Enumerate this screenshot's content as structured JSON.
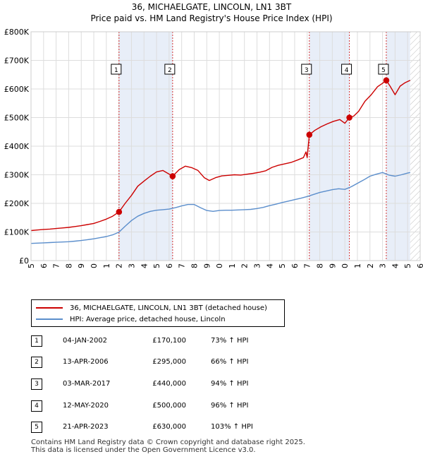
{
  "header": {
    "title": "36, MICHAELGATE, LINCOLN, LN1 3BT",
    "subtitle": "Price paid vs. HM Land Registry's House Price Index (HPI)"
  },
  "chart_data": {
    "type": "line",
    "title": "36, MICHAELGATE, LINCOLN, LN1 3BT",
    "subtitle": "Price paid vs. HM Land Registry's House Price Index (HPI)",
    "xlabel": "",
    "ylabel": "",
    "xlim": [
      1995,
      2026
    ],
    "ylim": [
      0,
      800000
    ],
    "x_ticks": [
      1995,
      1996,
      1997,
      1998,
      1999,
      2000,
      2001,
      2002,
      2003,
      2004,
      2005,
      2006,
      2007,
      2008,
      2009,
      2010,
      2011,
      2012,
      2013,
      2014,
      2015,
      2016,
      2017,
      2018,
      2019,
      2020,
      2021,
      2022,
      2023,
      2024,
      2025,
      2026
    ],
    "y_ticks": [
      {
        "value": 0,
        "label": "£0"
      },
      {
        "value": 100000,
        "label": "£100K"
      },
      {
        "value": 200000,
        "label": "£200K"
      },
      {
        "value": 300000,
        "label": "£300K"
      },
      {
        "value": 400000,
        "label": "£400K"
      },
      {
        "value": 500000,
        "label": "£500K"
      },
      {
        "value": 600000,
        "label": "£600K"
      },
      {
        "value": 700000,
        "label": "£700K"
      },
      {
        "value": 800000,
        "label": "£800K"
      }
    ],
    "grid": true,
    "shaded_periods": [
      [
        2002.01,
        2006.28
      ],
      [
        2017.17,
        2020.36
      ],
      [
        2023.3,
        2025.2
      ]
    ],
    "future_hatch_from": 2025.2,
    "series": [
      {
        "name": "36, MICHAELGATE, LINCOLN, LN1 3BT (detached house)",
        "color": "#cc0000",
        "x": [
          1995,
          1995.5,
          1996,
          1996.5,
          1997,
          1997.5,
          1998,
          1998.5,
          1999,
          1999.5,
          2000,
          2000.5,
          2001,
          2001.5,
          2002.01,
          2002.5,
          2003,
          2003.5,
          2004,
          2004.5,
          2005,
          2005.5,
          2006.28,
          2006.8,
          2007.3,
          2007.8,
          2008.3,
          2008.8,
          2009.2,
          2009.7,
          2010.2,
          2010.7,
          2011.2,
          2011.7,
          2012.2,
          2012.7,
          2013.2,
          2013.7,
          2014.2,
          2014.7,
          2015.2,
          2015.7,
          2016.2,
          2016.7,
          2016.9,
          2017.0,
          2017.17,
          2017.6,
          2018.1,
          2018.6,
          2019.1,
          2019.6,
          2020.0,
          2020.36,
          2020.7,
          2021.1,
          2021.6,
          2022.1,
          2022.6,
          2023.0,
          2023.3,
          2023.6,
          2024.0,
          2024.4,
          2024.8,
          2025.2
        ],
        "y": [
          105000,
          107000,
          109000,
          110000,
          112000,
          114000,
          116000,
          119000,
          122000,
          126000,
          130000,
          137000,
          145000,
          155000,
          170100,
          200000,
          228000,
          260000,
          278000,
          295000,
          310000,
          315000,
          295000,
          318000,
          330000,
          325000,
          315000,
          290000,
          280000,
          290000,
          296000,
          298000,
          300000,
          299000,
          302000,
          305000,
          309000,
          314000,
          326000,
          333000,
          338000,
          343000,
          351000,
          360000,
          380000,
          360000,
          440000,
          455000,
          468000,
          478000,
          487000,
          493000,
          480000,
          500000,
          505000,
          522000,
          557000,
          580000,
          608000,
          620000,
          630000,
          610000,
          580000,
          610000,
          622000,
          630000
        ]
      },
      {
        "name": "HPI: Average price, detached house, Lincoln",
        "color": "#5b8ecc",
        "x": [
          1995,
          1995.5,
          1996,
          1996.5,
          1997,
          1997.5,
          1998,
          1998.5,
          1999,
          1999.5,
          2000,
          2000.5,
          2001,
          2001.5,
          2002.0,
          2002.5,
          2003,
          2003.5,
          2004,
          2004.5,
          2005,
          2005.5,
          2006.0,
          2006.5,
          2007.0,
          2007.5,
          2008.0,
          2008.5,
          2009.0,
          2009.5,
          2010.0,
          2010.5,
          2011.0,
          2011.5,
          2012.0,
          2012.5,
          2013.0,
          2013.5,
          2014.0,
          2014.5,
          2015.0,
          2015.5,
          2016.0,
          2016.5,
          2017.0,
          2017.5,
          2018.0,
          2018.5,
          2019.0,
          2019.5,
          2020.0,
          2020.5,
          2021.0,
          2021.5,
          2022.0,
          2022.5,
          2023.0,
          2023.5,
          2024.0,
          2024.5,
          2025.0,
          2025.2
        ],
        "y": [
          60000,
          61000,
          62000,
          63000,
          64000,
          65000,
          66000,
          68000,
          70000,
          73000,
          76000,
          80000,
          84000,
          90000,
          99000,
          120000,
          140000,
          155000,
          165000,
          172000,
          176000,
          178000,
          180000,
          185000,
          191000,
          196000,
          196000,
          185000,
          175000,
          172000,
          175000,
          176000,
          176000,
          177000,
          178000,
          179000,
          182000,
          186000,
          192000,
          197000,
          203000,
          208000,
          213000,
          218000,
          224000,
          231000,
          238000,
          243000,
          248000,
          251000,
          249000,
          258000,
          270000,
          282000,
          295000,
          302000,
          308000,
          299000,
          295000,
          300000,
          306000,
          308000
        ]
      }
    ],
    "sales": [
      {
        "num": "1",
        "x": 2002.01,
        "price": 170100,
        "date": "04-JAN-2002",
        "price_label": "£170,100",
        "hpi": "73% ↑ HPI"
      },
      {
        "num": "2",
        "x": 2006.28,
        "price": 295000,
        "date": "13-APR-2006",
        "price_label": "£295,000",
        "hpi": "66% ↑ HPI"
      },
      {
        "num": "3",
        "x": 2017.17,
        "price": 440000,
        "date": "03-MAR-2017",
        "price_label": "£440,000",
        "hpi": "94% ↑ HPI"
      },
      {
        "num": "4",
        "x": 2020.36,
        "price": 500000,
        "date": "12-MAY-2020",
        "price_label": "£500,000",
        "hpi": "96% ↑ HPI"
      },
      {
        "num": "5",
        "x": 2023.3,
        "price": 630000,
        "date": "21-APR-2023",
        "price_label": "£630,000",
        "hpi": "103% ↑ HPI"
      }
    ]
  },
  "legend": {
    "property_label": "36, MICHAELGATE, LINCOLN, LN1 3BT (detached house)",
    "hpi_label": "HPI: Average price, detached house, Lincoln",
    "property_color": "#cc0000",
    "hpi_color": "#5b8ecc"
  },
  "footer": {
    "line1": "Contains HM Land Registry data © Crown copyright and database right 2025.",
    "line2": "This data is licensed under the Open Government Licence v3.0."
  }
}
